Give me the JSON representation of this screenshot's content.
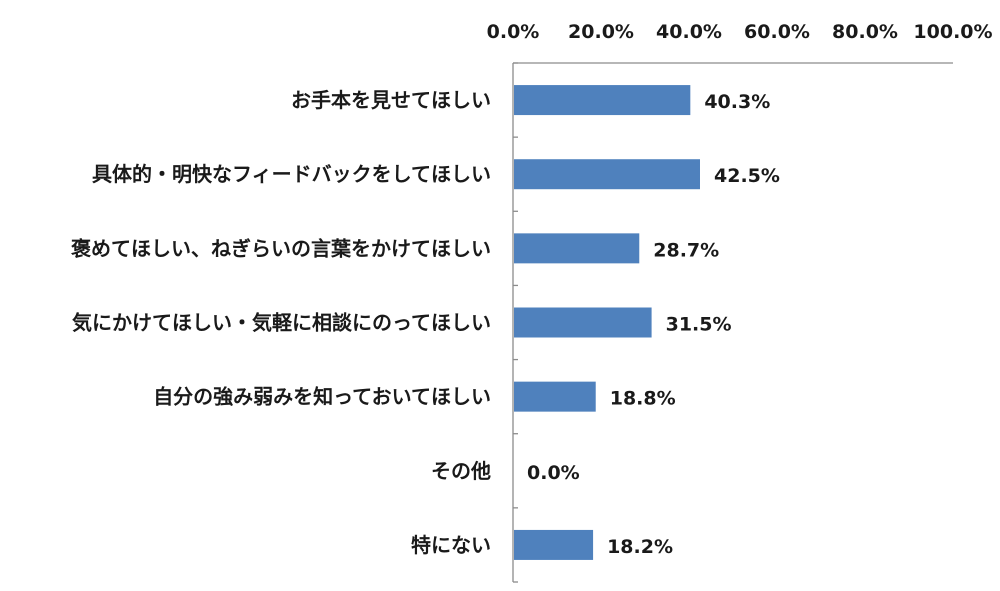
{
  "chart_data": {
    "type": "bar",
    "orientation": "horizontal",
    "categories": [
      "お手本を見せてほしい",
      "具体的・明快なフィードバックをしてほしい",
      "褒めてほしい、ねぎらいの言葉をかけてほしい",
      "気にかけてほしい・気軽に相談にのってほしい",
      "自分の強み弱みを知っておいてほしい",
      "その他",
      "特にない"
    ],
    "values": [
      40.3,
      42.5,
      28.7,
      31.5,
      18.8,
      0.0,
      18.2
    ],
    "value_labels": [
      "40.3%",
      "42.5%",
      "28.7%",
      "31.5%",
      "18.8%",
      "0.0%",
      "18.2%"
    ],
    "xlim": [
      0,
      100
    ],
    "x_ticks": [
      0,
      20,
      40,
      60,
      80,
      100
    ],
    "x_tick_labels": [
      "0.0%",
      "20.0%",
      "40.0%",
      "60.0%",
      "80.0%",
      "100.0%"
    ],
    "x_axis_position": "top",
    "grid": false,
    "legend": "none",
    "title": "",
    "xlabel": "",
    "ylabel": "",
    "bar_color": "#4f81bd",
    "axis_color": "#8c8c8c"
  }
}
